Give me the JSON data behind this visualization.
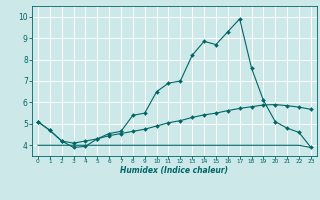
{
  "xlabel": "Humidex (Indice chaleur)",
  "xlim": [
    -0.5,
    23.5
  ],
  "ylim": [
    3.5,
    10.5
  ],
  "yticks": [
    4,
    5,
    6,
    7,
    8,
    9,
    10
  ],
  "xticks": [
    0,
    1,
    2,
    3,
    4,
    5,
    6,
    7,
    8,
    9,
    10,
    11,
    12,
    13,
    14,
    15,
    16,
    17,
    18,
    19,
    20,
    21,
    22,
    23
  ],
  "bg_color": "#cce8e8",
  "line_color": "#006666",
  "grid_color": "#ffffff",
  "line1_x": [
    0,
    1,
    2,
    3,
    4,
    5,
    6,
    7,
    8,
    9,
    10,
    11,
    12,
    13,
    14,
    15,
    16,
    17,
    18,
    19,
    20,
    21,
    22,
    23
  ],
  "line1_y": [
    5.1,
    4.7,
    4.2,
    3.9,
    3.95,
    4.3,
    4.55,
    4.65,
    5.4,
    5.5,
    6.5,
    6.9,
    7.0,
    8.2,
    8.85,
    8.7,
    9.3,
    9.9,
    7.6,
    6.1,
    5.1,
    4.8,
    4.6,
    3.9
  ],
  "line2_x": [
    0,
    1,
    2,
    3,
    4,
    5,
    6,
    7,
    8,
    9,
    10,
    11,
    12,
    13,
    14,
    15,
    16,
    17,
    18,
    19,
    20,
    21,
    22,
    23
  ],
  "line2_y": [
    5.1,
    4.7,
    4.2,
    4.1,
    4.2,
    4.3,
    4.45,
    4.55,
    4.65,
    4.75,
    4.9,
    5.05,
    5.15,
    5.3,
    5.42,
    5.5,
    5.62,
    5.72,
    5.8,
    5.88,
    5.9,
    5.85,
    5.78,
    5.68
  ],
  "line3_x": [
    0,
    1,
    2,
    3,
    4,
    5,
    6,
    7,
    8,
    9,
    10,
    11,
    12,
    13,
    14,
    15,
    16,
    17,
    18,
    19,
    20,
    21,
    22,
    23
  ],
  "line3_y": [
    4.0,
    4.0,
    4.0,
    4.0,
    4.0,
    4.0,
    4.0,
    4.0,
    4.0,
    4.0,
    4.0,
    4.0,
    4.0,
    4.0,
    4.0,
    4.0,
    4.0,
    4.0,
    4.0,
    4.0,
    4.0,
    4.0,
    4.0,
    3.9
  ]
}
